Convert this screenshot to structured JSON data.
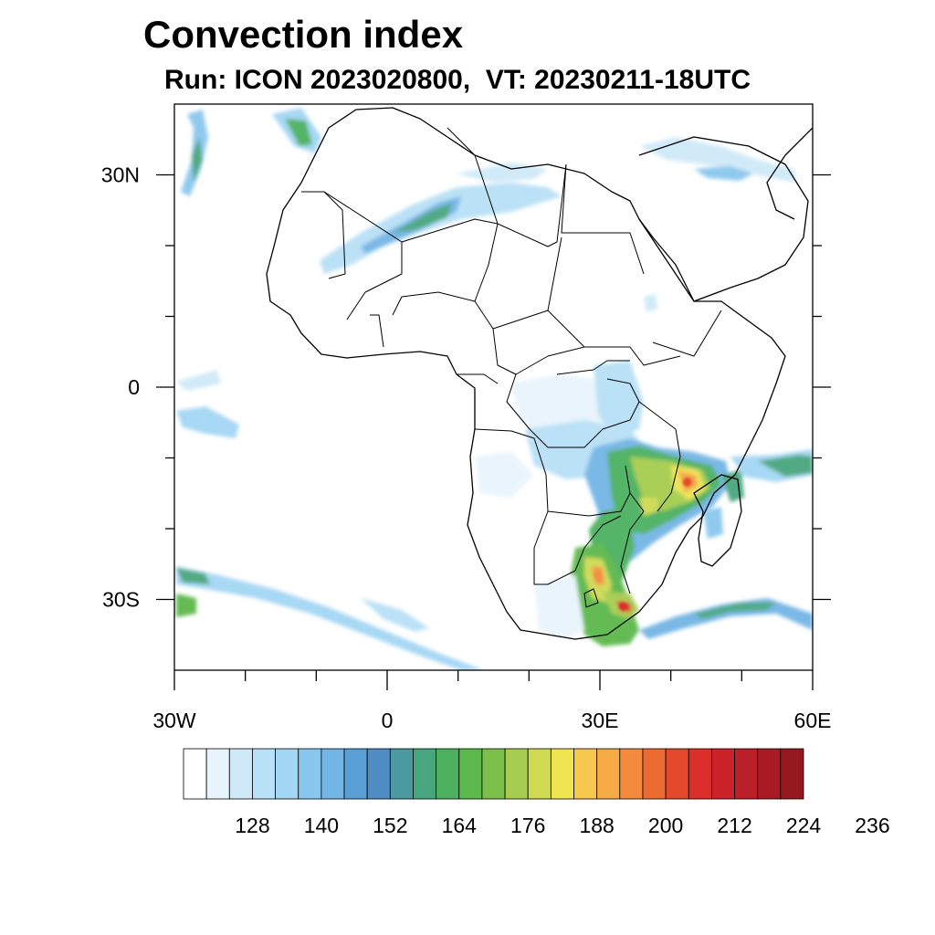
{
  "title": "Convection index",
  "subtitle": "Run: ICON 2023020800,  VT: 20230211-18UTC",
  "map": {
    "lon_range": [
      -30,
      60
    ],
    "lat_range": [
      -40,
      40
    ],
    "lat_ticks": [
      {
        "value": 30,
        "label": "30N"
      },
      {
        "value": 0,
        "label": "0"
      },
      {
        "value": -30,
        "label": "30S"
      }
    ],
    "lon_ticks": [
      {
        "value": -30,
        "label": "30W"
      },
      {
        "value": 0,
        "label": "0"
      },
      {
        "value": 30,
        "label": "30E"
      },
      {
        "value": 60,
        "label": "60E"
      }
    ],
    "minor_lon_ticks": [
      -20,
      -10,
      10,
      20,
      40,
      50
    ],
    "minor_lat_ticks": [
      20,
      10,
      -10,
      -20
    ],
    "land_color": "#ffffff",
    "border_color": "#000000"
  },
  "colorbar": {
    "colors": [
      "#ffffff",
      "#e8f4fc",
      "#cfe9f8",
      "#b8e0f6",
      "#a3d6f4",
      "#8ac7ee",
      "#73b5e5",
      "#5a9ed6",
      "#4f8cc4",
      "#4a9aa0",
      "#48a67e",
      "#4cb05e",
      "#5cb84c",
      "#7cc04c",
      "#a6cd4f",
      "#cfda52",
      "#f0e453",
      "#f6c94e",
      "#f5aa45",
      "#f28c3c",
      "#ec6b33",
      "#e34a2c",
      "#da2f2a",
      "#cc2229",
      "#bb1f28",
      "#a81b25",
      "#951a1f"
    ],
    "tick_labels": [
      "128",
      "140",
      "152",
      "164",
      "176",
      "188",
      "200",
      "212",
      "224",
      "236"
    ]
  }
}
